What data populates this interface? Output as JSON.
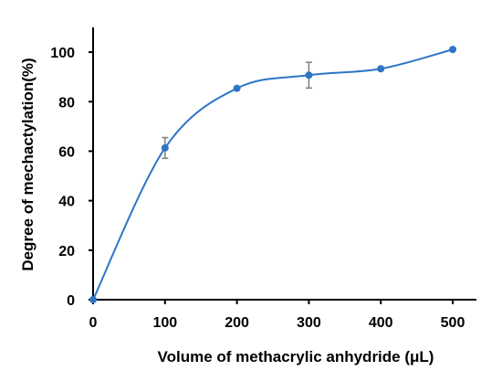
{
  "chart_data": {
    "type": "line",
    "title": "",
    "xlabel": "Volume of methacrylic anhydride (μL)",
    "ylabel": "Degree of mechactylation(%)",
    "xlim": [
      0,
      500
    ],
    "ylim": [
      0,
      110
    ],
    "xticks": [
      0,
      100,
      200,
      300,
      400,
      500
    ],
    "yticks": [
      0,
      20,
      40,
      60,
      80,
      100
    ],
    "grid": false,
    "legend": "none",
    "series": [
      {
        "color": "#2e75c6",
        "points": [
          {
            "x": 0,
            "y": 0,
            "err": 0
          },
          {
            "x": 100,
            "y": 61.3,
            "err": 4.2
          },
          {
            "x": 200,
            "y": 85.4,
            "err": 0
          },
          {
            "x": 300,
            "y": 90.7,
            "err": 5.2
          },
          {
            "x": 400,
            "y": 93.3,
            "err": 0
          },
          {
            "x": 500,
            "y": 101.1,
            "err": 0
          }
        ]
      }
    ],
    "errorbar_color": "#7f7f7f",
    "axis_color": "#000000"
  }
}
